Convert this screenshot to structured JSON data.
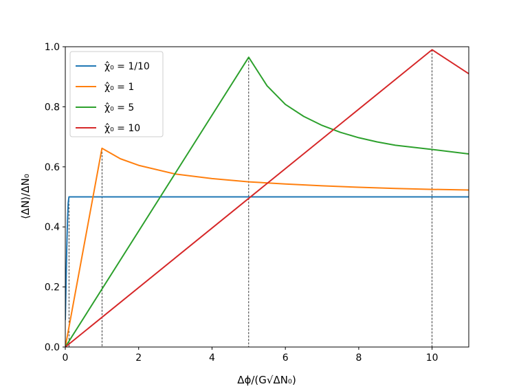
{
  "chart_data": {
    "type": "line",
    "xlabel": "Δϕ/(G√ΔN₀)",
    "ylabel": "⟨ΔN⟩/ΔN₀",
    "xlim": [
      0,
      11
    ],
    "ylim": [
      0,
      1.0
    ],
    "xticks": [
      0,
      2,
      4,
      6,
      8,
      10
    ],
    "yticks": [
      0.0,
      0.2,
      0.4,
      0.6,
      0.8,
      1.0
    ],
    "xtick_labels": [
      "0",
      "2",
      "4",
      "6",
      "8",
      "10"
    ],
    "ytick_labels": [
      "0.0",
      "0.2",
      "0.4",
      "0.6",
      "0.8",
      "1.0"
    ],
    "grid": false,
    "legend_position": "top-left",
    "vertical_reference_lines": [
      0.1,
      1,
      5,
      10
    ],
    "series": [
      {
        "name": "χ̂₀ = 1/10",
        "color": "#1f77b4",
        "points": [
          [
            0,
            0.09
          ],
          [
            0.02,
            0.21
          ],
          [
            0.04,
            0.33
          ],
          [
            0.06,
            0.42
          ],
          [
            0.08,
            0.48
          ],
          [
            0.1,
            0.5
          ],
          [
            11,
            0.5
          ]
        ]
      },
      {
        "name": "χ̂₀ = 1",
        "color": "#ff7f0e",
        "points": [
          [
            0,
            0
          ],
          [
            1,
            0.662
          ],
          [
            1.5,
            0.627
          ],
          [
            2,
            0.605
          ],
          [
            3,
            0.576
          ],
          [
            4,
            0.561
          ],
          [
            5,
            0.55
          ],
          [
            6,
            0.543
          ],
          [
            7,
            0.537
          ],
          [
            8,
            0.532
          ],
          [
            9,
            0.528
          ],
          [
            10,
            0.525
          ],
          [
            11,
            0.523
          ]
        ]
      },
      {
        "name": "χ̂₀ = 5",
        "color": "#2ca02c",
        "points": [
          [
            0,
            0
          ],
          [
            5,
            0.965
          ],
          [
            5.5,
            0.87
          ],
          [
            6,
            0.808
          ],
          [
            6.5,
            0.768
          ],
          [
            7,
            0.738
          ],
          [
            7.5,
            0.715
          ],
          [
            8,
            0.697
          ],
          [
            8.5,
            0.683
          ],
          [
            9,
            0.672
          ],
          [
            10,
            0.658
          ],
          [
            11,
            0.643
          ]
        ]
      },
      {
        "name": "χ̂₀ = 10",
        "color": "#d62728",
        "points": [
          [
            0,
            0
          ],
          [
            10,
            0.99
          ],
          [
            10.5,
            0.95
          ],
          [
            11,
            0.91
          ]
        ]
      }
    ]
  }
}
